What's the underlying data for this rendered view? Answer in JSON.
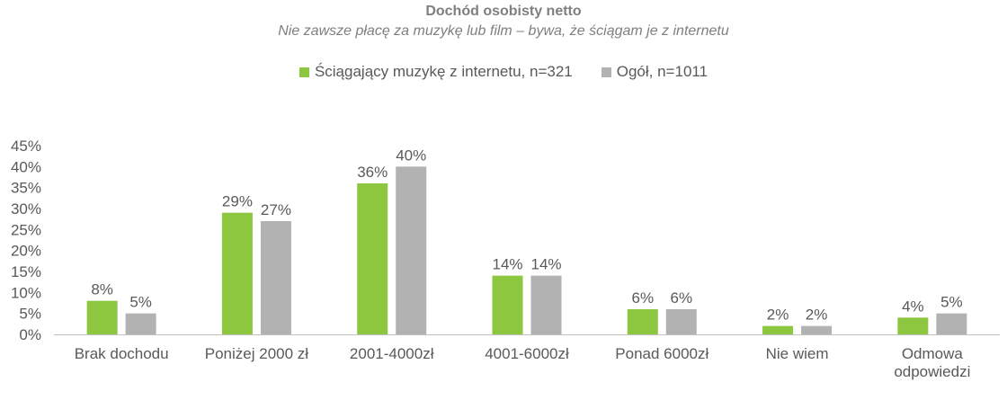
{
  "chart_data": {
    "type": "bar",
    "title": "Dochód osobisty netto",
    "subtitle": "Nie zawsze płacę za muzykę lub film – bywa, że ściągam je z internetu",
    "categories": [
      "Brak dochodu",
      "Poniżej 2000 zł",
      "2001-4000zł",
      "4001-6000zł",
      "Ponad 6000zł",
      "Nie wiem",
      "Odmowa odpowiedzi"
    ],
    "series": [
      {
        "name": "Ściągający muzykę z internetu, n=321",
        "color": "#8dc63f",
        "values": [
          8,
          29,
          36,
          14,
          6,
          2,
          4
        ],
        "labels": [
          "8%",
          "29%",
          "36%",
          "14%",
          "6%",
          "2%",
          "4%"
        ]
      },
      {
        "name": "Ogół, n=1011",
        "color": "#b2b2b2",
        "values": [
          5,
          27,
          40,
          14,
          6,
          2,
          5
        ],
        "labels": [
          "5%",
          "27%",
          "40%",
          "14%",
          "6%",
          "2%",
          "5%"
        ]
      }
    ],
    "yticks": [
      "0%",
      "5%",
      "10%",
      "15%",
      "20%",
      "25%",
      "30%",
      "35%",
      "40%",
      "45%"
    ],
    "ylim": [
      0,
      45
    ],
    "grid": false,
    "legend_position": "top"
  }
}
